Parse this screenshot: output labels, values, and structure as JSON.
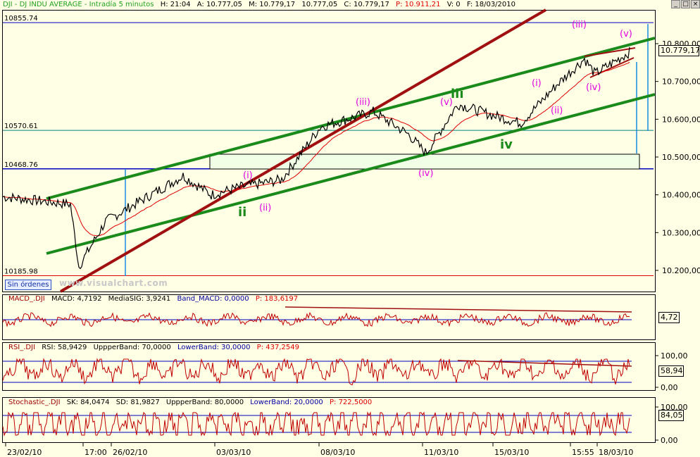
{
  "header": {
    "symbol": "DJI - DJ INDU AVERAGE - Intradía 5 minutos",
    "time": "H: 21:04",
    "open": "A: 10.777,05",
    "high": "M: 10.779,17",
    "low": "10.777,05",
    "close": "C: 10.779,17",
    "points": "P: 10.911,21",
    "volume": "V: 0",
    "flag": "F: 18/03/2010"
  },
  "window_buttons": {
    "minimize": "_",
    "maximize": "□",
    "close": "×"
  },
  "orders_button": "Sin órdenes",
  "watermark": "www.visualchart.com",
  "price_panel": {
    "current_value": "10.779,17",
    "y_ticks": [
      "10.800,00",
      "10.700,00",
      "10.600,00",
      "10.500,00",
      "10.400,00",
      "10.300,00",
      "10.200,00"
    ],
    "levels": [
      "10855.74",
      "10570.61",
      "10468.76",
      "10185.98"
    ]
  },
  "macd_panel": {
    "header": [
      "MACD_.DJI",
      "MACD: 4,7192",
      "MediaSIG: 3,9241",
      "Band_MACD: 0,0000",
      "P: 183,6197"
    ],
    "current_value": "4,72"
  },
  "rsi_panel": {
    "header": [
      "RSI_.DJI",
      "RSI: 58,9429",
      "UppperBand: 70,0000",
      "LowerBand: 30,0000",
      "P: 437,2549"
    ],
    "current_value": "58,94",
    "y_ticks": [
      "100,00",
      "0,00"
    ]
  },
  "stoch_panel": {
    "header": [
      "Stochastic_.DJI",
      "SK: 84,0474",
      "SD: 81,9827",
      "UppperBand: 80,0000",
      "LowerBand: 20,0000",
      "P: 722,5000"
    ],
    "current_value": "84,05",
    "y_ticks": [
      "100,00",
      "0,00"
    ]
  },
  "x_axis_labels": [
    "23/02/10",
    "17:00",
    "26/02/10",
    "03/03/10",
    "08/03/10",
    "11/03/10",
    "15/03/10",
    "15:55",
    "18/03/10"
  ],
  "wave_labels": {
    "magenta": [
      "(iii)",
      "(v)",
      "(i)",
      "(iii)",
      "(v)",
      "(i)",
      "(ii)",
      "(iv)",
      "(ii)",
      "(iv)"
    ],
    "green": [
      "iii",
      "ii",
      "iv"
    ]
  },
  "colors": {
    "background": "#ffffe6",
    "price": "#000000",
    "moving_average": "#e00000",
    "channel": "#1a8a1a",
    "trendline": "#a01010",
    "level_line": "#0000a0",
    "wave_magenta": "#e000e0",
    "wave_green": "#1a8a1a",
    "indicator": "#c00000"
  },
  "chart_data": {
    "type": "line",
    "x": [
      "23/02/10",
      "17:00",
      "26/02/10",
      "03/03/10",
      "08/03/10",
      "11/03/10",
      "15/03/10",
      "15:55",
      "18/03/10"
    ],
    "series": [
      {
        "values": [
          10395,
          10195,
          10330,
          10420,
          10580,
          10510,
          10575,
          10690,
          10779
        ]
      }
    ],
    "ylim": [
      10160,
      10860
    ]
  }
}
